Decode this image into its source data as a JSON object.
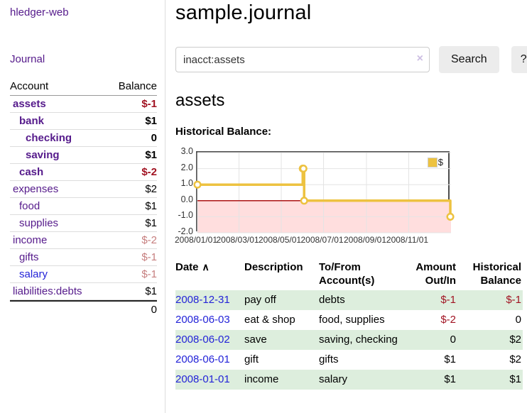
{
  "colors": {
    "link_purple": "#551a8b",
    "link_blue": "#2323d8",
    "neg_strong": "#a11322",
    "neg_muted": "#c67e7e",
    "row_green": "#ddeedd",
    "button_bg": "#ececec",
    "border_light": "#dddddd",
    "chart_line": "#edc240"
  },
  "app": {
    "brand": "hledger-web",
    "nav_journal": "Journal"
  },
  "sidebar": {
    "header": {
      "account": "Account",
      "balance": "Balance"
    },
    "accounts": [
      {
        "name": "assets",
        "balance": "$-1"
      },
      {
        "name": "bank",
        "balance": "$1"
      },
      {
        "name": "checking",
        "balance": "0"
      },
      {
        "name": "saving",
        "balance": "$1"
      },
      {
        "name": "cash",
        "balance": "$-2"
      },
      {
        "name": "expenses",
        "balance": "$2"
      },
      {
        "name": "food",
        "balance": "$1"
      },
      {
        "name": "supplies",
        "balance": "$1"
      },
      {
        "name": "income",
        "balance": "$-2"
      },
      {
        "name": "gifts",
        "balance": "$-1"
      },
      {
        "name": "salary",
        "balance": "$-1"
      },
      {
        "name": "liabilities:debts",
        "balance": "$1"
      }
    ],
    "total": "0"
  },
  "header": {
    "title": "sample.journal"
  },
  "search": {
    "value": "inacct:assets",
    "clear_icon": "×",
    "button_label": "Search",
    "help_label": "?"
  },
  "account_page": {
    "title": "assets",
    "chart_label": "Historical Balance:"
  },
  "chart_data": {
    "type": "line",
    "step": true,
    "title": "Historical Balance:",
    "series": [
      {
        "name": "$",
        "points": [
          {
            "date": "2008-01-01",
            "value": 1
          },
          {
            "date": "2008-06-01",
            "value": 2
          },
          {
            "date": "2008-06-02",
            "value": 2
          },
          {
            "date": "2008-06-03",
            "value": 0
          },
          {
            "date": "2008-12-31",
            "value": -1
          }
        ]
      }
    ],
    "x_range": [
      "2008-01-01",
      "2009-01-01"
    ],
    "ylim": [
      -2,
      3
    ],
    "grid": true,
    "legend": {
      "label": "$",
      "position": "top-right"
    },
    "y_ticks": [
      {
        "label": "3.0",
        "value": 3
      },
      {
        "label": "2.0",
        "value": 2
      },
      {
        "label": "1.0",
        "value": 1
      },
      {
        "label": "0.0",
        "value": 0
      },
      {
        "label": "-1.0",
        "value": -1
      },
      {
        "label": "-2.0",
        "value": -2
      }
    ],
    "x_ticks": [
      {
        "label": "2008/01/01",
        "date": "2008-01-01"
      },
      {
        "label": "2008/03/01",
        "date": "2008-03-01"
      },
      {
        "label": "2008/05/01",
        "date": "2008-05-01"
      },
      {
        "label": "2008/07/01",
        "date": "2008-07-01"
      },
      {
        "label": "2008/09/01",
        "date": "2008-09-01"
      },
      {
        "label": "2008/11/01",
        "date": "2008-11-01"
      }
    ],
    "colors": {
      "line": "#edc240",
      "negative_fill": "#ffdede",
      "zero_line": "#a40000",
      "grid": "#e4e4e4",
      "border": "#4d4d4d"
    }
  },
  "register_table": {
    "sort_icon": "∧",
    "headers": {
      "date": "Date",
      "description": "Description",
      "accounts": "To/From Account(s)",
      "amount": "Amount Out/In",
      "balance": "Historical Balance"
    },
    "rows": [
      {
        "date": "2008-12-31",
        "description": "pay off",
        "accounts": "debts",
        "amount": "$-1",
        "balance": "$-1"
      },
      {
        "date": "2008-06-03",
        "description": "eat & shop",
        "accounts": "food, supplies",
        "amount": "$-2",
        "balance": "0"
      },
      {
        "date": "2008-06-02",
        "description": "save",
        "accounts": "saving, checking",
        "amount": "0",
        "balance": "$2"
      },
      {
        "date": "2008-06-01",
        "description": "gift",
        "accounts": "gifts",
        "amount": "$1",
        "balance": "$2"
      },
      {
        "date": "2008-01-01",
        "description": "income",
        "accounts": "salary",
        "amount": "$1",
        "balance": "$1"
      }
    ]
  }
}
